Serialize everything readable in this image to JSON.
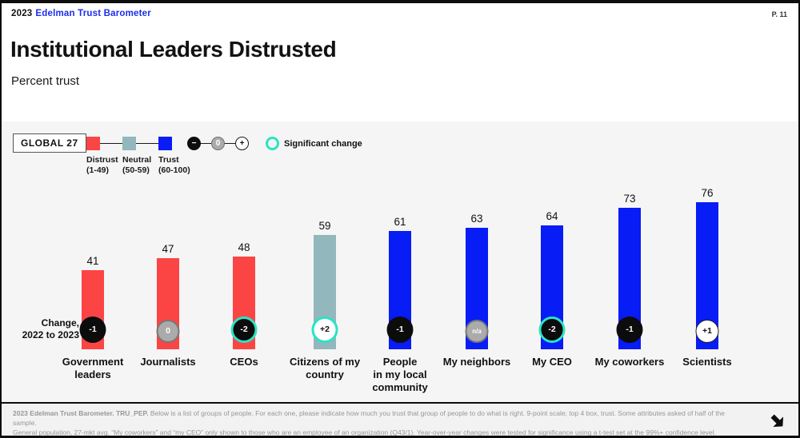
{
  "page": {
    "page_number": "P. 11"
  },
  "header": {
    "year": "2023",
    "brand": "Edelman Trust Barometer",
    "title": "Institutional Leaders Distrusted",
    "subtitle": "Percent trust"
  },
  "legend": {
    "scope_label": "GLOBAL 27",
    "scale": [
      {
        "label": "Distrust\n(1-49)",
        "color": "#fb4545"
      },
      {
        "label": "Neutral\n(50-59)",
        "color": "#92b7bd"
      },
      {
        "label": "Trust\n(60-100)",
        "color": "#081cf5"
      }
    ],
    "change_markers": {
      "minus": "−",
      "zero": "0",
      "plus": "+"
    },
    "significant_label": "Significant change",
    "significant_color": "#2be3c6"
  },
  "chart": {
    "change_caption_line1": "Change,",
    "change_caption_line2": "2022 to 2023"
  },
  "chart_data": {
    "type": "bar",
    "title": "Institutional Leaders Distrusted",
    "ylabel": "Percent trust",
    "ylim": [
      0,
      100
    ],
    "grid": false,
    "categories": [
      "Government leaders",
      "Journalists",
      "CEOs",
      "Citizens of my country",
      "People in my local community",
      "My neighbors",
      "My CEO",
      "My coworkers",
      "Scientists"
    ],
    "category_lines": [
      [
        "Government",
        "leaders"
      ],
      [
        "Journalists"
      ],
      [
        "CEOs"
      ],
      [
        "Citizens of my",
        "country"
      ],
      [
        "People",
        "in my local",
        "community"
      ],
      [
        "My neighbors"
      ],
      [
        "My CEO"
      ],
      [
        "My coworkers"
      ],
      [
        "Scientists"
      ]
    ],
    "values": [
      41,
      47,
      48,
      59,
      61,
      63,
      64,
      73,
      76
    ],
    "bands": [
      "distrust",
      "distrust",
      "distrust",
      "neutral",
      "trust",
      "trust",
      "trust",
      "trust",
      "trust"
    ],
    "changes_2022_to_2023": [
      "-1",
      "0",
      "-2",
      "+2",
      "-1",
      "n/a",
      "-2",
      "-1",
      "+1"
    ],
    "change_kinds": [
      "neg",
      "zero",
      "neg",
      "pos",
      "neg",
      "na",
      "neg",
      "neg",
      "pos"
    ],
    "significant_change": [
      false,
      false,
      true,
      true,
      false,
      false,
      true,
      false,
      false
    ],
    "band_colors": {
      "distrust": "#fb4545",
      "neutral": "#92b7bd",
      "trust": "#081cf5"
    }
  },
  "footer": {
    "bold": "2023 Edelman Trust Barometer. TRU_PEP.",
    "line1_rest": " Below is a list of groups of people. For each one, please indicate how much you trust that group of people to do what is right. 9-point scale; top 4 box, trust. Some attributes asked of half of the sample.",
    "line2": "General population, 27-mkt avg. “My coworkers” and “my CEO” only shown to those who are an employee of an organization (Q43/1). Year-over-year changes were tested for significance using a t-test set at the 99%+ confidence level."
  }
}
